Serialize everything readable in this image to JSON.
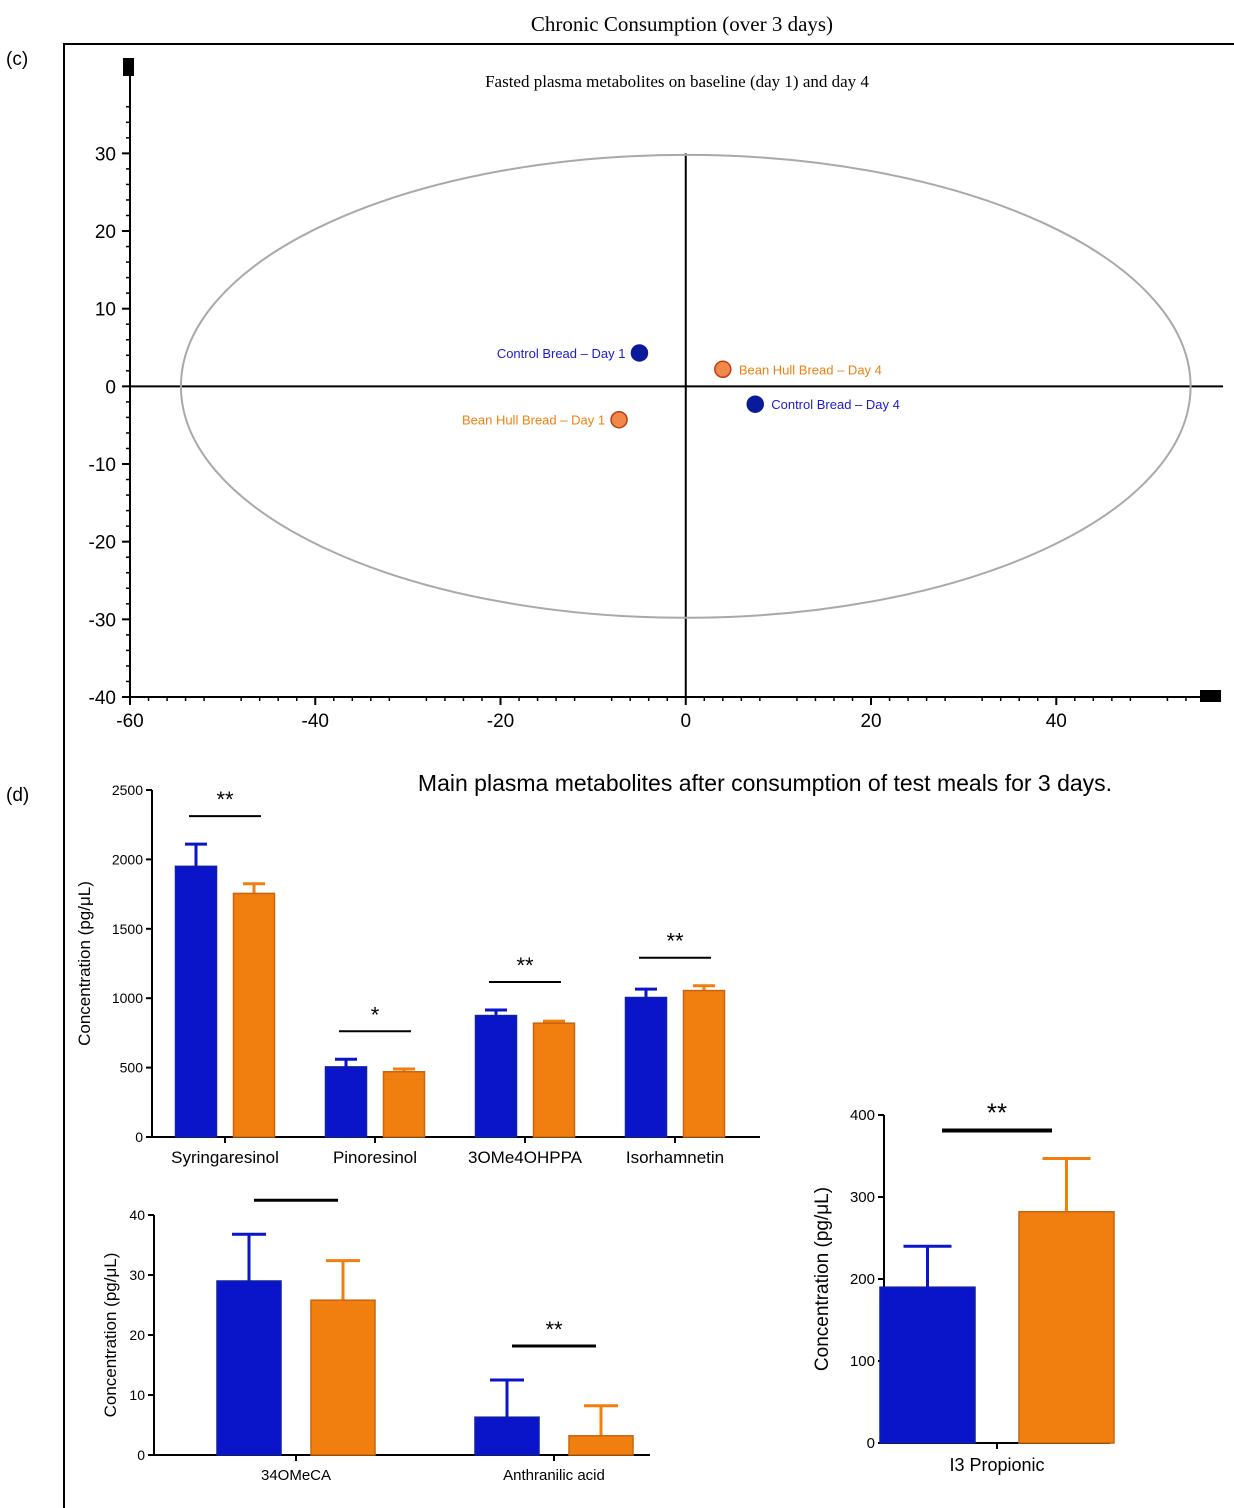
{
  "page": {
    "header_title": "Chronic Consumption (over 3 days)",
    "panel_c_label": "(c)",
    "panel_d_label": "(d)"
  },
  "colors": {
    "control": "#0a14c8",
    "bean_hull": "#f07f10",
    "control_point": "#0b1a9a",
    "bean_hull_point": "#f0884a",
    "bean_hull_point_edge": "#c43a10",
    "ellipse": "#a9a9a9"
  },
  "chart_data": [
    {
      "id": "score_plot",
      "type": "scatter",
      "title": "Fasted plasma metabolites on baseline (day 1) and day 4",
      "xlim": [
        -60,
        58
      ],
      "ylim": [
        -40,
        37
      ],
      "xticks": [
        -60,
        -40,
        -20,
        0,
        20,
        40
      ],
      "yticks": [
        30,
        20,
        10,
        0,
        -10,
        -20,
        -30,
        -40
      ],
      "grid": false,
      "ellipse": {
        "x_radius": 54.5,
        "y_radius": 29.8
      },
      "points": [
        {
          "label": "Control Bread – Day 1",
          "x": -5,
          "y": 4.3,
          "group": "control",
          "label_side": "left"
        },
        {
          "label": "Bean Hull Bread – Day 4",
          "x": 4,
          "y": 2.2,
          "group": "bean_hull",
          "label_side": "right"
        },
        {
          "label": "Control Bread – Day 4",
          "x": 7.5,
          "y": -2.3,
          "group": "control",
          "label_side": "right"
        },
        {
          "label": "Bean Hull Bread – Day 1",
          "x": -7.2,
          "y": -4.3,
          "group": "bean_hull",
          "label_side": "left"
        }
      ]
    },
    {
      "id": "main_metabolites",
      "type": "bar",
      "title": "Main plasma metabolites after consumption of test meals for 3 days.",
      "ylabel": "Concentration (pg/μL)",
      "ylim": [
        0,
        2500
      ],
      "yticks": [
        0,
        500,
        1000,
        1500,
        2000,
        2500
      ],
      "categories": [
        "Syringaresinol",
        "Pinoresinol",
        "3OMe4OHPPA",
        "Isorhamnetin"
      ],
      "series": [
        {
          "group": "control",
          "values": [
            1950,
            505,
            875,
            1005
          ],
          "errors": [
            160,
            55,
            40,
            60
          ]
        },
        {
          "group": "bean_hull",
          "values": [
            1755,
            470,
            820,
            1055
          ],
          "errors": [
            70,
            20,
            15,
            35
          ]
        }
      ],
      "significance": [
        "**",
        "*",
        "**",
        "**"
      ]
    },
    {
      "id": "minor_metabolites",
      "type": "bar",
      "ylabel": "Concentration (pg/μL)",
      "ylim": [
        0,
        40
      ],
      "yticks": [
        0,
        10,
        20,
        30,
        40
      ],
      "categories": [
        "34OMeCA",
        "Anthranilic acid"
      ],
      "series": [
        {
          "group": "control",
          "values": [
            29,
            6.3
          ],
          "errors": [
            7.8,
            6.2
          ]
        },
        {
          "group": "bean_hull",
          "values": [
            25.8,
            3.2
          ],
          "errors": [
            6.6,
            5.0
          ]
        }
      ],
      "significance": [
        "**",
        "**"
      ]
    },
    {
      "id": "i3_propionic",
      "type": "bar",
      "ylabel": "Concentration (pg/μL)",
      "ylim": [
        0,
        400
      ],
      "yticks": [
        0,
        100,
        200,
        300,
        400
      ],
      "categories": [
        "I3 Propionic"
      ],
      "series": [
        {
          "group": "control",
          "values": [
            190
          ],
          "errors": [
            50
          ]
        },
        {
          "group": "bean_hull",
          "values": [
            282
          ],
          "errors": [
            65
          ]
        }
      ],
      "significance": [
        "**"
      ]
    }
  ]
}
